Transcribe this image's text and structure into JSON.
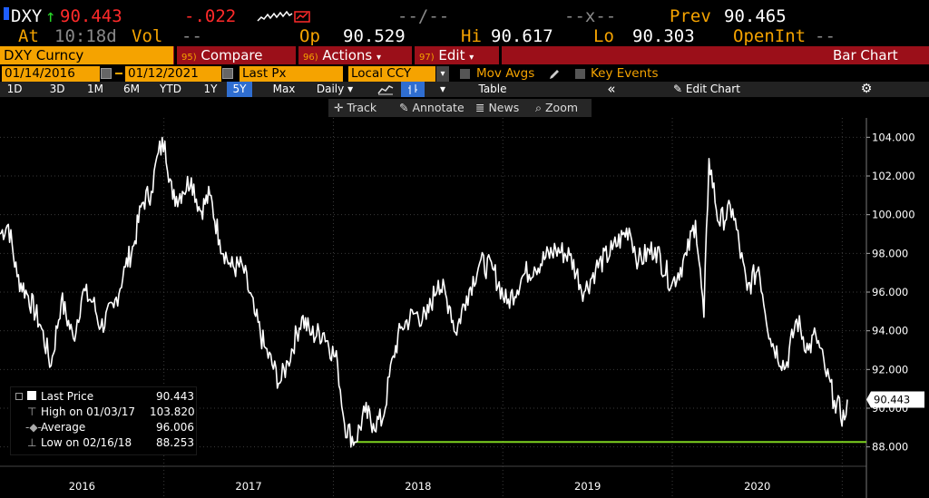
{
  "header": {
    "ticker": "DXY",
    "up_arrow": "↑",
    "last": "90.443",
    "change": "-.022",
    "dashes1": "--/--",
    "dashes2": "--x--",
    "prev_label": "Prev",
    "prev": "90.465",
    "at_label": "At",
    "time": "10:18d",
    "vol_label": "Vol",
    "vol": "--",
    "op_label": "Op",
    "op": "90.529",
    "hi_label": "Hi",
    "hi": "90.617",
    "lo_label": "Lo",
    "lo": "90.303",
    "openint_label": "OpenInt",
    "openint": "--"
  },
  "menu": {
    "security": "DXY Curncy",
    "compare_num": "95)",
    "compare": "Compare",
    "actions_num": "96)",
    "actions": "Actions",
    "edit_num": "97)",
    "edit": "Edit",
    "dropdown_glyph": "▾",
    "chart_type": "Bar Chart"
  },
  "settings": {
    "start_date": "01/14/2016",
    "end_date": "01/12/2021",
    "price_type": "Last Px",
    "currency": "Local CCY",
    "mov_avgs": "Mov Avgs",
    "key_events": "Key Events"
  },
  "timeframes": [
    "1D",
    "3D",
    "1M",
    "6M",
    "YTD",
    "1Y",
    "5Y",
    "Max"
  ],
  "active_timeframe": "5Y",
  "frequency": "Daily",
  "table_label": "Table",
  "collapse_glyph": "«",
  "edit_chart": "Edit Chart",
  "toolbar": {
    "track": "Track",
    "annotate": "Annotate",
    "news": "News",
    "zoom": "Zoom"
  },
  "legend": {
    "last_price_label": "Last Price",
    "last_price": "90.443",
    "high_label": "High on 01/03/17",
    "high": "103.820",
    "average_label": "Average",
    "average": "96.006",
    "low_label": "Low on 02/16/18",
    "low": "88.253"
  },
  "colors": {
    "background": "#000000",
    "amber": "#f5a300",
    "red_bar": "#9b0f19",
    "line": "#ffffff",
    "low_line": "#7ed321",
    "active_tab": "#2f6ed1"
  },
  "chart_data": {
    "type": "line",
    "title": "",
    "xlabel": "",
    "ylabel": "",
    "x_range": [
      "2016-01-14",
      "2021-01-12"
    ],
    "ylim": [
      87,
      105
    ],
    "yticks": [
      "88.000",
      "90.000",
      "92.000",
      "94.000",
      "96.000",
      "98.000",
      "100.000",
      "102.000",
      "104.000"
    ],
    "xticks": [
      "2016",
      "2017",
      "2018",
      "2019",
      "2020"
    ],
    "last_value_label": "90.443",
    "low_reference": 88.253,
    "series": [
      {
        "values": [
          [
            "2016-01-14",
            99.0
          ],
          [
            "2016-02-01",
            99.5
          ],
          [
            "2016-02-20",
            96.8
          ],
          [
            "2016-03-15",
            95.8
          ],
          [
            "2016-04-10",
            94.3
          ],
          [
            "2016-05-03",
            92.2
          ],
          [
            "2016-05-25",
            95.6
          ],
          [
            "2016-06-20",
            93.6
          ],
          [
            "2016-07-10",
            96.0
          ],
          [
            "2016-08-01",
            95.5
          ],
          [
            "2016-08-18",
            94.2
          ],
          [
            "2016-09-15",
            95.2
          ],
          [
            "2016-10-10",
            97.3
          ],
          [
            "2016-10-28",
            98.4
          ],
          [
            "2016-11-15",
            100.6
          ],
          [
            "2016-12-05",
            101.2
          ],
          [
            "2016-12-20",
            103.2
          ],
          [
            "2017-01-03",
            103.8
          ],
          [
            "2017-01-20",
            100.8
          ],
          [
            "2017-02-10",
            101.2
          ],
          [
            "2017-03-01",
            101.9
          ],
          [
            "2017-03-20",
            100.2
          ],
          [
            "2017-04-10",
            101.0
          ],
          [
            "2017-05-01",
            98.7
          ],
          [
            "2017-05-25",
            97.3
          ],
          [
            "2017-06-20",
            97.3
          ],
          [
            "2017-07-15",
            94.9
          ],
          [
            "2017-08-05",
            93.2
          ],
          [
            "2017-09-08",
            91.3
          ],
          [
            "2017-09-25",
            92.4
          ],
          [
            "2017-10-25",
            94.7
          ],
          [
            "2017-11-15",
            93.8
          ],
          [
            "2017-12-12",
            93.9
          ],
          [
            "2018-01-10",
            92.3
          ],
          [
            "2018-01-25",
            89.2
          ],
          [
            "2018-02-16",
            88.25
          ],
          [
            "2018-03-10",
            89.8
          ],
          [
            "2018-03-28",
            89.2
          ],
          [
            "2018-04-17",
            89.4
          ],
          [
            "2018-05-10",
            92.7
          ],
          [
            "2018-05-28",
            94.2
          ],
          [
            "2018-06-25",
            94.9
          ],
          [
            "2018-07-20",
            94.6
          ],
          [
            "2018-08-15",
            96.6
          ],
          [
            "2018-09-10",
            95.2
          ],
          [
            "2018-09-21",
            93.9
          ],
          [
            "2018-10-15",
            95.8
          ],
          [
            "2018-11-12",
            97.5
          ],
          [
            "2018-12-10",
            97.2
          ],
          [
            "2019-01-10",
            95.4
          ],
          [
            "2019-02-15",
            96.9
          ],
          [
            "2019-03-10",
            97.3
          ],
          [
            "2019-04-25",
            98.2
          ],
          [
            "2019-05-25",
            97.9
          ],
          [
            "2019-06-25",
            96.0
          ],
          [
            "2019-07-20",
            97.2
          ],
          [
            "2019-08-25",
            98.2
          ],
          [
            "2019-09-30",
            99.3
          ],
          [
            "2019-10-20",
            97.6
          ],
          [
            "2019-11-25",
            98.3
          ],
          [
            "2019-12-31",
            96.4
          ],
          [
            "2020-02-01",
            97.9
          ],
          [
            "2020-02-20",
            99.7
          ],
          [
            "2020-03-09",
            94.7
          ],
          [
            "2020-03-20",
            102.9
          ],
          [
            "2020-04-10",
            99.6
          ],
          [
            "2020-05-10",
            100.3
          ],
          [
            "2020-06-10",
            96.1
          ],
          [
            "2020-07-05",
            97.3
          ],
          [
            "2020-07-30",
            93.6
          ],
          [
            "2020-09-01",
            92.1
          ],
          [
            "2020-09-25",
            94.6
          ],
          [
            "2020-10-20",
            93.0
          ],
          [
            "2020-11-05",
            93.8
          ],
          [
            "2020-11-25",
            92.0
          ],
          [
            "2020-12-15",
            90.4
          ],
          [
            "2021-01-06",
            89.4
          ],
          [
            "2021-01-12",
            90.443
          ]
        ]
      }
    ]
  }
}
